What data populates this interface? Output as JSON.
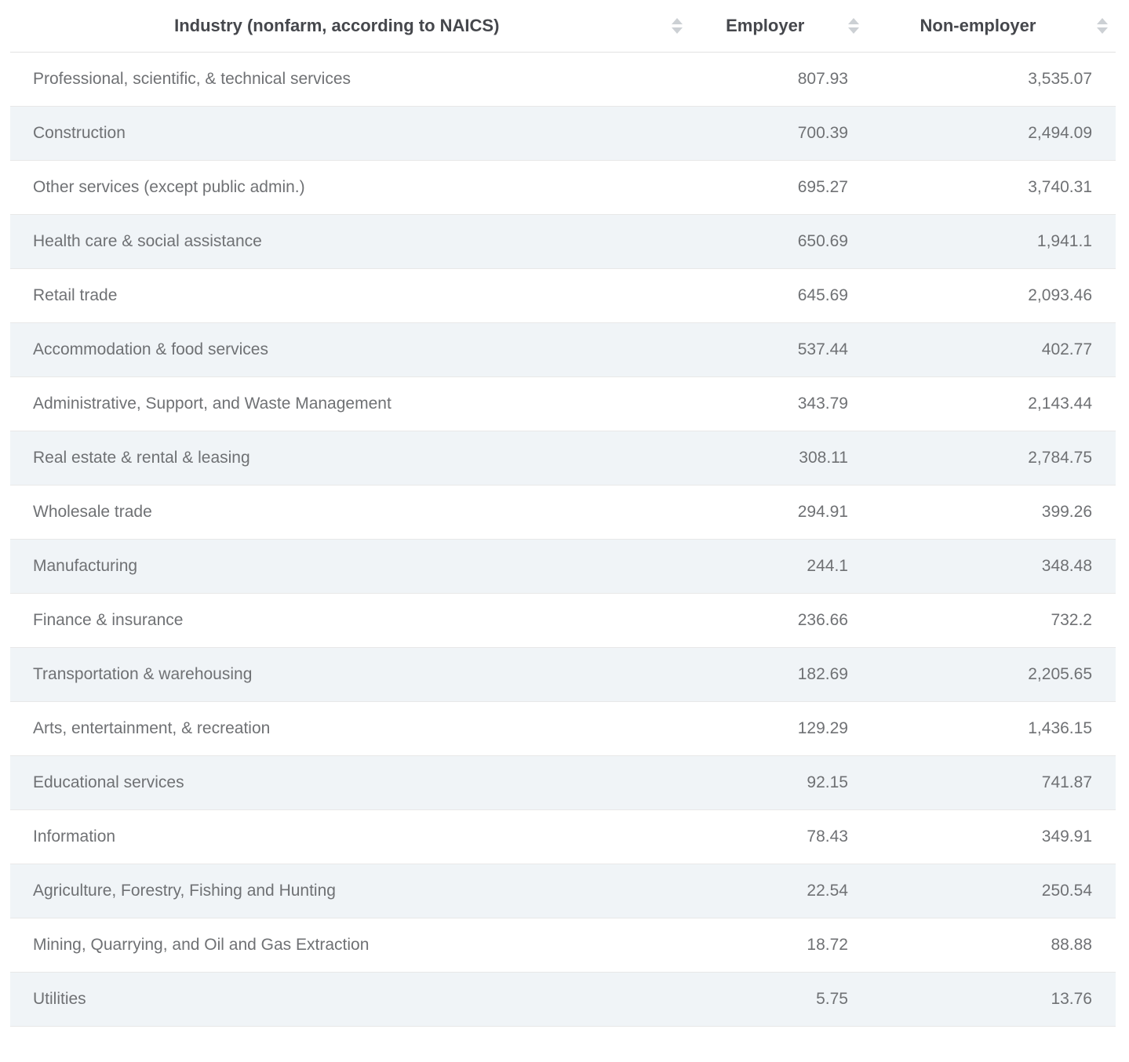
{
  "table": {
    "columns": [
      {
        "label": "Industry (nonfarm, according to NAICS)"
      },
      {
        "label": "Employer"
      },
      {
        "label": "Non-employer"
      }
    ],
    "rows": [
      {
        "industry": "Professional, scientific, & technical services",
        "employer": "807.93",
        "non_employer": "3,535.07"
      },
      {
        "industry": "Construction",
        "employer": "700.39",
        "non_employer": "2,494.09"
      },
      {
        "industry": "Other services (except public admin.)",
        "employer": "695.27",
        "non_employer": "3,740.31"
      },
      {
        "industry": "Health care & social assistance",
        "employer": "650.69",
        "non_employer": "1,941.1"
      },
      {
        "industry": "Retail trade",
        "employer": "645.69",
        "non_employer": "2,093.46"
      },
      {
        "industry": "Accommodation & food services",
        "employer": "537.44",
        "non_employer": "402.77"
      },
      {
        "industry": "Administrative, Support, and Waste Management",
        "employer": "343.79",
        "non_employer": "2,143.44"
      },
      {
        "industry": "Real estate & rental & leasing",
        "employer": "308.11",
        "non_employer": "2,784.75"
      },
      {
        "industry": "Wholesale trade",
        "employer": "294.91",
        "non_employer": "399.26"
      },
      {
        "industry": "Manufacturing",
        "employer": "244.1",
        "non_employer": "348.48"
      },
      {
        "industry": "Finance & insurance",
        "employer": "236.66",
        "non_employer": "732.2"
      },
      {
        "industry": "Transportation & warehousing",
        "employer": "182.69",
        "non_employer": "2,205.65"
      },
      {
        "industry": "Arts, entertainment, & recreation",
        "employer": "129.29",
        "non_employer": "1,436.15"
      },
      {
        "industry": "Educational services",
        "employer": "92.15",
        "non_employer": "741.87"
      },
      {
        "industry": "Information",
        "employer": "78.43",
        "non_employer": "349.91"
      },
      {
        "industry": "Agriculture, Forestry, Fishing and Hunting",
        "employer": "22.54",
        "non_employer": "250.54"
      },
      {
        "industry": "Mining, Quarrying, and Oil and Gas Extraction",
        "employer": "18.72",
        "non_employer": "88.88"
      },
      {
        "industry": "Utilities",
        "employer": "5.75",
        "non_employer": "13.76"
      }
    ]
  },
  "icons": {
    "sort_icon": "up-down-triangles"
  },
  "colors": {
    "stripe": "#f0f4f7",
    "header_text": "#45474c",
    "body_text": "#6f7174",
    "row_border": "#e8e8e8",
    "sort_icon": "#ccd0d4"
  }
}
